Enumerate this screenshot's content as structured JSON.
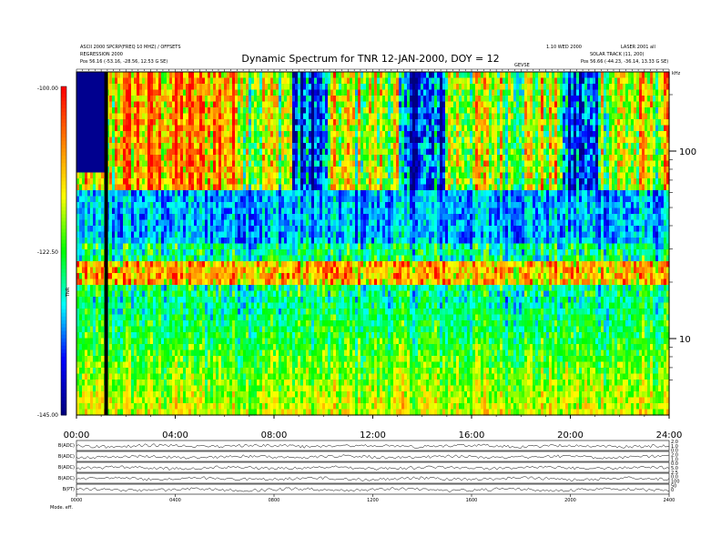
{
  "header": {
    "left_lines": [
      "ASCII 2000 SPCRP(FREQ 10 MHZ) / OFFSETS",
      "REGRESSION 2000",
      "Pos    56.16 (-53.16, -28.56, 12.53 G SE)"
    ],
    "right_lines": [
      "1.10 WED 2000",
      "SOLAR TRACK (11, 200)",
      "Pos    56.66 (-44.23, -36.14, 13.33 G SE)"
    ],
    "right_top": "LASER 2001 all",
    "small_mid": "GEVSE",
    "small_right_corner": "kHz"
  },
  "chart_data": {
    "type": "heatmap",
    "title": "Dynamic Spectrum for TNR 12-JAN-2000, DOY = 12",
    "x_ticks": [
      "00:00",
      "04:00",
      "08:00",
      "12:00",
      "16:00",
      "20:00",
      "24:00"
    ],
    "x_range_hours": [
      0,
      24
    ],
    "y_scale": "log",
    "y_ticks": [
      100,
      10
    ],
    "y_unit": "kHz",
    "colorbar": {
      "label": "TNR",
      "ticks": [
        "-100.00",
        "-122.50",
        "-145.00"
      ],
      "range": [
        -145,
        -100
      ],
      "colors": [
        "#000080",
        "#0000ff",
        "#00ffff",
        "#00ff00",
        "#ffff00",
        "#ff8000",
        "#ff0000"
      ]
    },
    "panels": [
      {
        "label": "B(ADC)"
      },
      {
        "label": "B(ADC)"
      },
      {
        "label": "B(ADC)"
      },
      {
        "label": "B(ADC)"
      },
      {
        "label": "B(PT)"
      }
    ],
    "panel_right_ticks": [
      "2.0",
      "1.0",
      "0.0",
      "2.0",
      "1.0",
      "0.0",
      "5.0",
      "2.5",
      "0.0",
      "100",
      "50",
      "0"
    ],
    "bottom_x_ticks": [
      "0000",
      "0400",
      "0800",
      "1200",
      "1600",
      "2000",
      "2400"
    ],
    "bottom_left_label": "Mode.   eff."
  }
}
